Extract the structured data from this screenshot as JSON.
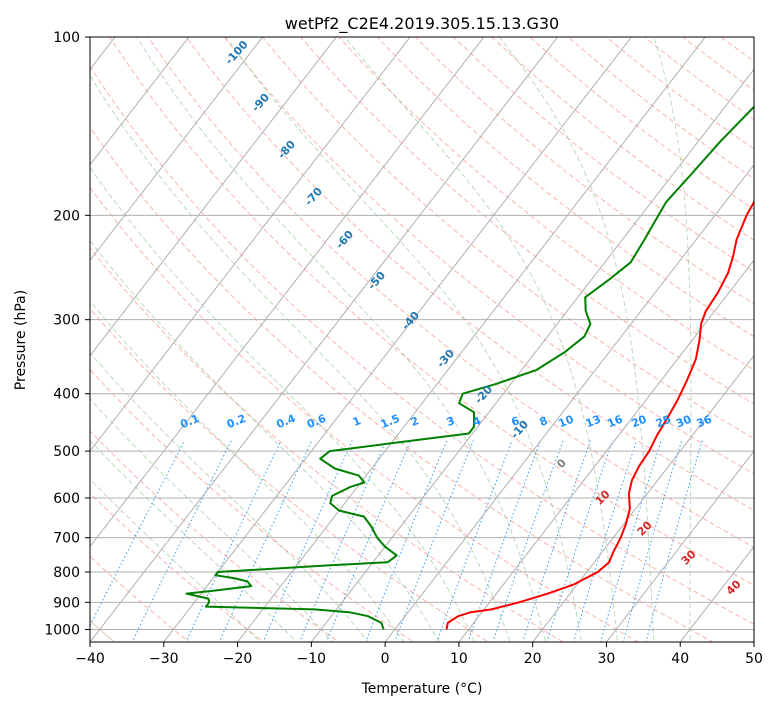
{
  "chart_data": {
    "type": "line",
    "subtype": "skew-T log-P diagram",
    "title": "wetPf2_C2E4.2019.305.15.13.G30",
    "xlabel": "Temperature (°C)",
    "ylabel": "Pressure (hPa)",
    "xlim": [
      -40,
      50
    ],
    "ylim": [
      1050,
      100
    ],
    "y_scale": "log",
    "grid": true,
    "x_ticks": [
      -40,
      -30,
      -20,
      -10,
      0,
      10,
      20,
      30,
      40,
      50
    ],
    "y_ticks": [
      100,
      200,
      300,
      400,
      500,
      600,
      700,
      800,
      900,
      1000
    ],
    "series": [
      {
        "color": "#ff0000",
        "points": [
          [
            7.0,
            1000
          ],
          [
            6.5,
            975
          ],
          [
            7.2,
            950
          ],
          [
            8.5,
            935
          ],
          [
            11.0,
            925
          ],
          [
            14.0,
            900
          ],
          [
            17.0,
            870
          ],
          [
            19.5,
            840
          ],
          [
            21.5,
            800
          ],
          [
            22.0,
            770
          ],
          [
            21.5,
            740
          ],
          [
            21.0,
            700
          ],
          [
            20.3,
            665
          ],
          [
            19.2,
            625
          ],
          [
            17.5,
            590
          ],
          [
            16.5,
            560
          ],
          [
            16.0,
            530
          ],
          [
            15.8,
            500
          ],
          [
            15.2,
            470
          ],
          [
            14.8,
            440
          ],
          [
            14.3,
            410
          ],
          [
            13.5,
            380
          ],
          [
            12.5,
            350
          ],
          [
            11.0,
            325
          ],
          [
            9.5,
            305
          ],
          [
            8.8,
            290
          ],
          [
            8.5,
            270
          ],
          [
            7.8,
            250
          ],
          [
            6.8,
            235
          ],
          [
            5.5,
            220
          ],
          [
            4.3,
            200
          ],
          [
            3.5,
            180
          ],
          [
            3.2,
            160
          ],
          [
            3.3,
            140
          ],
          [
            3.5,
            125
          ],
          [
            4.3,
            112
          ],
          [
            7.0,
            100
          ]
        ]
      },
      {
        "color": "#008000",
        "points": [
          [
            -1.5,
            1000
          ],
          [
            -2.5,
            975
          ],
          [
            -5.0,
            950
          ],
          [
            -8.0,
            935
          ],
          [
            -13.0,
            925
          ],
          [
            -28.0,
            915
          ],
          [
            -28.0,
            900
          ],
          [
            -28.5,
            887
          ],
          [
            -32.0,
            870
          ],
          [
            -28.5,
            860
          ],
          [
            -24.0,
            845
          ],
          [
            -25.0,
            830
          ],
          [
            -27.0,
            820
          ],
          [
            -30.0,
            810
          ],
          [
            -30.0,
            800
          ],
          [
            -16.0,
            780
          ],
          [
            -8.0,
            770
          ],
          [
            -7.5,
            750
          ],
          [
            -10.0,
            725
          ],
          [
            -12.0,
            700
          ],
          [
            -14.0,
            670
          ],
          [
            -16.0,
            645
          ],
          [
            -20.0,
            630
          ],
          [
            -22.0,
            612
          ],
          [
            -22.5,
            595
          ],
          [
            -21.0,
            575
          ],
          [
            -19.5,
            565
          ],
          [
            -21.0,
            550
          ],
          [
            -25.0,
            535
          ],
          [
            -28.0,
            515
          ],
          [
            -27.5,
            500
          ],
          [
            -20.0,
            485
          ],
          [
            -10.5,
            467
          ],
          [
            -10.5,
            455
          ],
          [
            -12.0,
            430
          ],
          [
            -15.0,
            415
          ],
          [
            -15.5,
            400
          ],
          [
            -12.0,
            385
          ],
          [
            -8.0,
            365
          ],
          [
            -6.0,
            340
          ],
          [
            -5.0,
            320
          ],
          [
            -5.5,
            305
          ],
          [
            -7.5,
            290
          ],
          [
            -9.0,
            275
          ],
          [
            -7.5,
            255
          ],
          [
            -6.5,
            240
          ],
          [
            -7.0,
            220
          ],
          [
            -7.5,
            205
          ],
          [
            -8.0,
            190
          ],
          [
            -7.5,
            170
          ],
          [
            -7.0,
            150
          ],
          [
            -6.0,
            130
          ],
          [
            -4.0,
            115
          ],
          [
            -2.0,
            100
          ]
        ]
      }
    ],
    "dry_adiabat_labels": [
      "-100",
      "-90",
      "-80",
      "-70",
      "-60",
      "-50",
      "-40",
      "-30",
      "-20",
      "-10"
    ],
    "mixing_ratio_labels": [
      "0.1",
      "0.2",
      "0.4",
      "0.6",
      "1",
      "1.5",
      "2",
      "3",
      "4",
      "6",
      "8",
      "10",
      "13",
      "16",
      "20",
      "25",
      "30",
      "36"
    ],
    "moist_adiabat_labels": [
      "0",
      "10",
      "20",
      "30",
      "40"
    ],
    "colors": {
      "isotherm": "#b0b0b0",
      "isobar": "#b0b0b0",
      "dry_adiabat": "#fa8072",
      "moist_adiabat": "#7fbf7f",
      "mixing_ratio": "#1e90ff",
      "dry_label": "#1f77b4",
      "mixing_label": "#1e90ff",
      "moist_label": "#d62728",
      "zero_label": "#808080",
      "temperature": "#ff0000",
      "dewpoint": "#008000"
    }
  }
}
